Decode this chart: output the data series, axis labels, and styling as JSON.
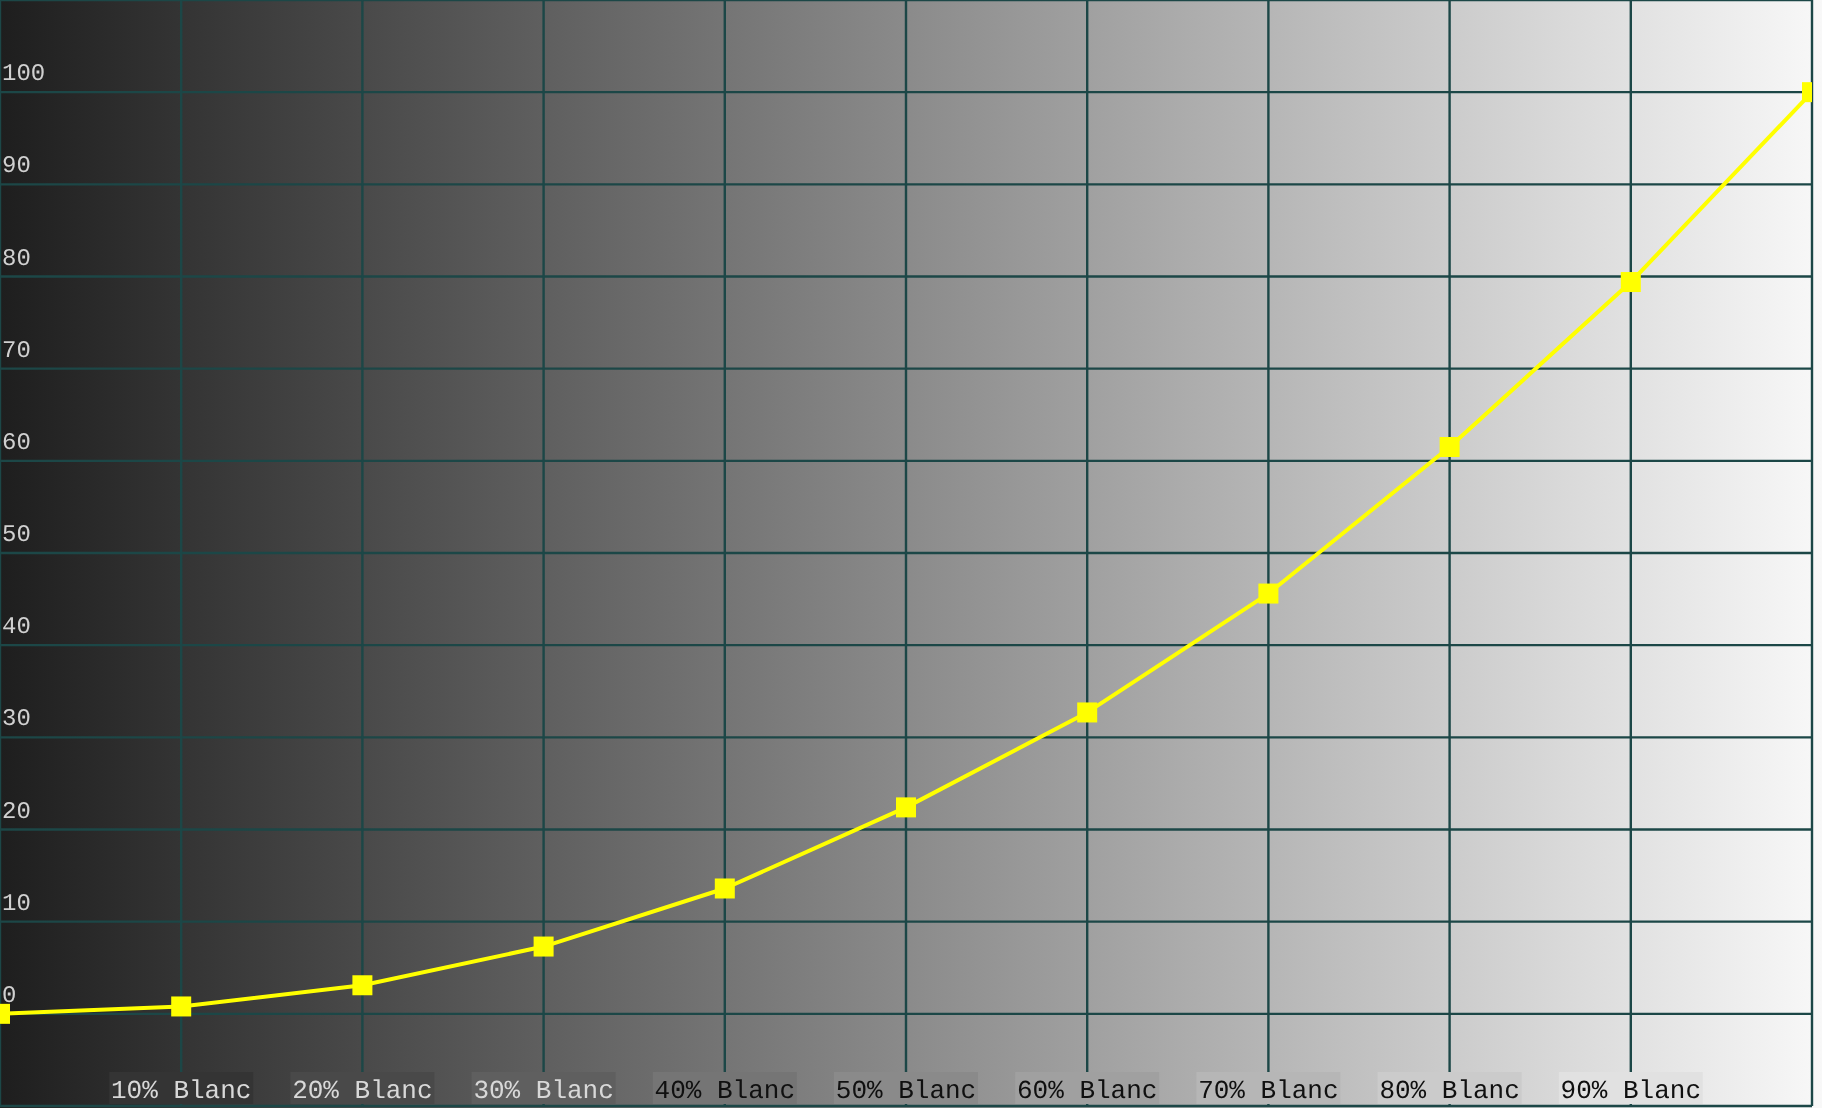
{
  "chart_data": {
    "type": "line",
    "categories": [
      null,
      "10% Blanc",
      "20% Blanc",
      "30% Blanc",
      "40% Blanc",
      "50% Blanc",
      "60% Blanc",
      "70% Blanc",
      "80% Blanc",
      "90% Blanc",
      null
    ],
    "series": [
      {
        "color": "#ffff00",
        "values": [
          0,
          0.8,
          3.1,
          7.3,
          13.6,
          22.4,
          32.7,
          45.6,
          61.5,
          79.4,
          100
        ]
      }
    ],
    "ylim": [
      -10,
      110
    ],
    "yticks": [
      0,
      10,
      20,
      30,
      40,
      50,
      60,
      70,
      80,
      90,
      100
    ],
    "grid": true,
    "marker": "square",
    "line_style": "solid"
  }
}
